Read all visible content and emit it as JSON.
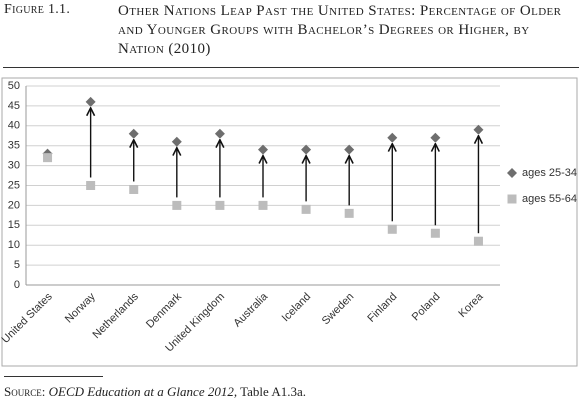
{
  "figure_label": "Figure 1.1.",
  "chart_data": {
    "type": "dot-arrow",
    "title": "Other Nations Leap Past the United States: Percentage of Older and Younger Groups with Bachelor’s Degrees or Higher, by Nation (2010)",
    "categories": [
      "United States",
      "Norway",
      "Netherlands",
      "Denmark",
      "United Kingdom",
      "Australia",
      "Iceland",
      "Sweden",
      "Finland",
      "Poland",
      "Korea"
    ],
    "series": [
      {
        "name": "ages 25-34",
        "color": "#6e6e6e",
        "marker": "diamond",
        "values": [
          33,
          46,
          38,
          36,
          38,
          34,
          34,
          34,
          37,
          37,
          39
        ]
      },
      {
        "name": "ages 55-64",
        "color": "#bcbcbc",
        "marker": "square",
        "values": [
          32,
          25,
          24,
          20,
          20,
          20,
          19,
          18,
          14,
          13,
          11
        ]
      }
    ],
    "ylim": [
      0,
      50
    ],
    "yticks": [
      0,
      5,
      10,
      15,
      20,
      25,
      30,
      35,
      40,
      45,
      50
    ],
    "grid": true,
    "legend": "right"
  },
  "source": {
    "label": "Source:",
    "title": "OECD Education at a Glance 2012,",
    "rest": "Table A1.3a."
  }
}
